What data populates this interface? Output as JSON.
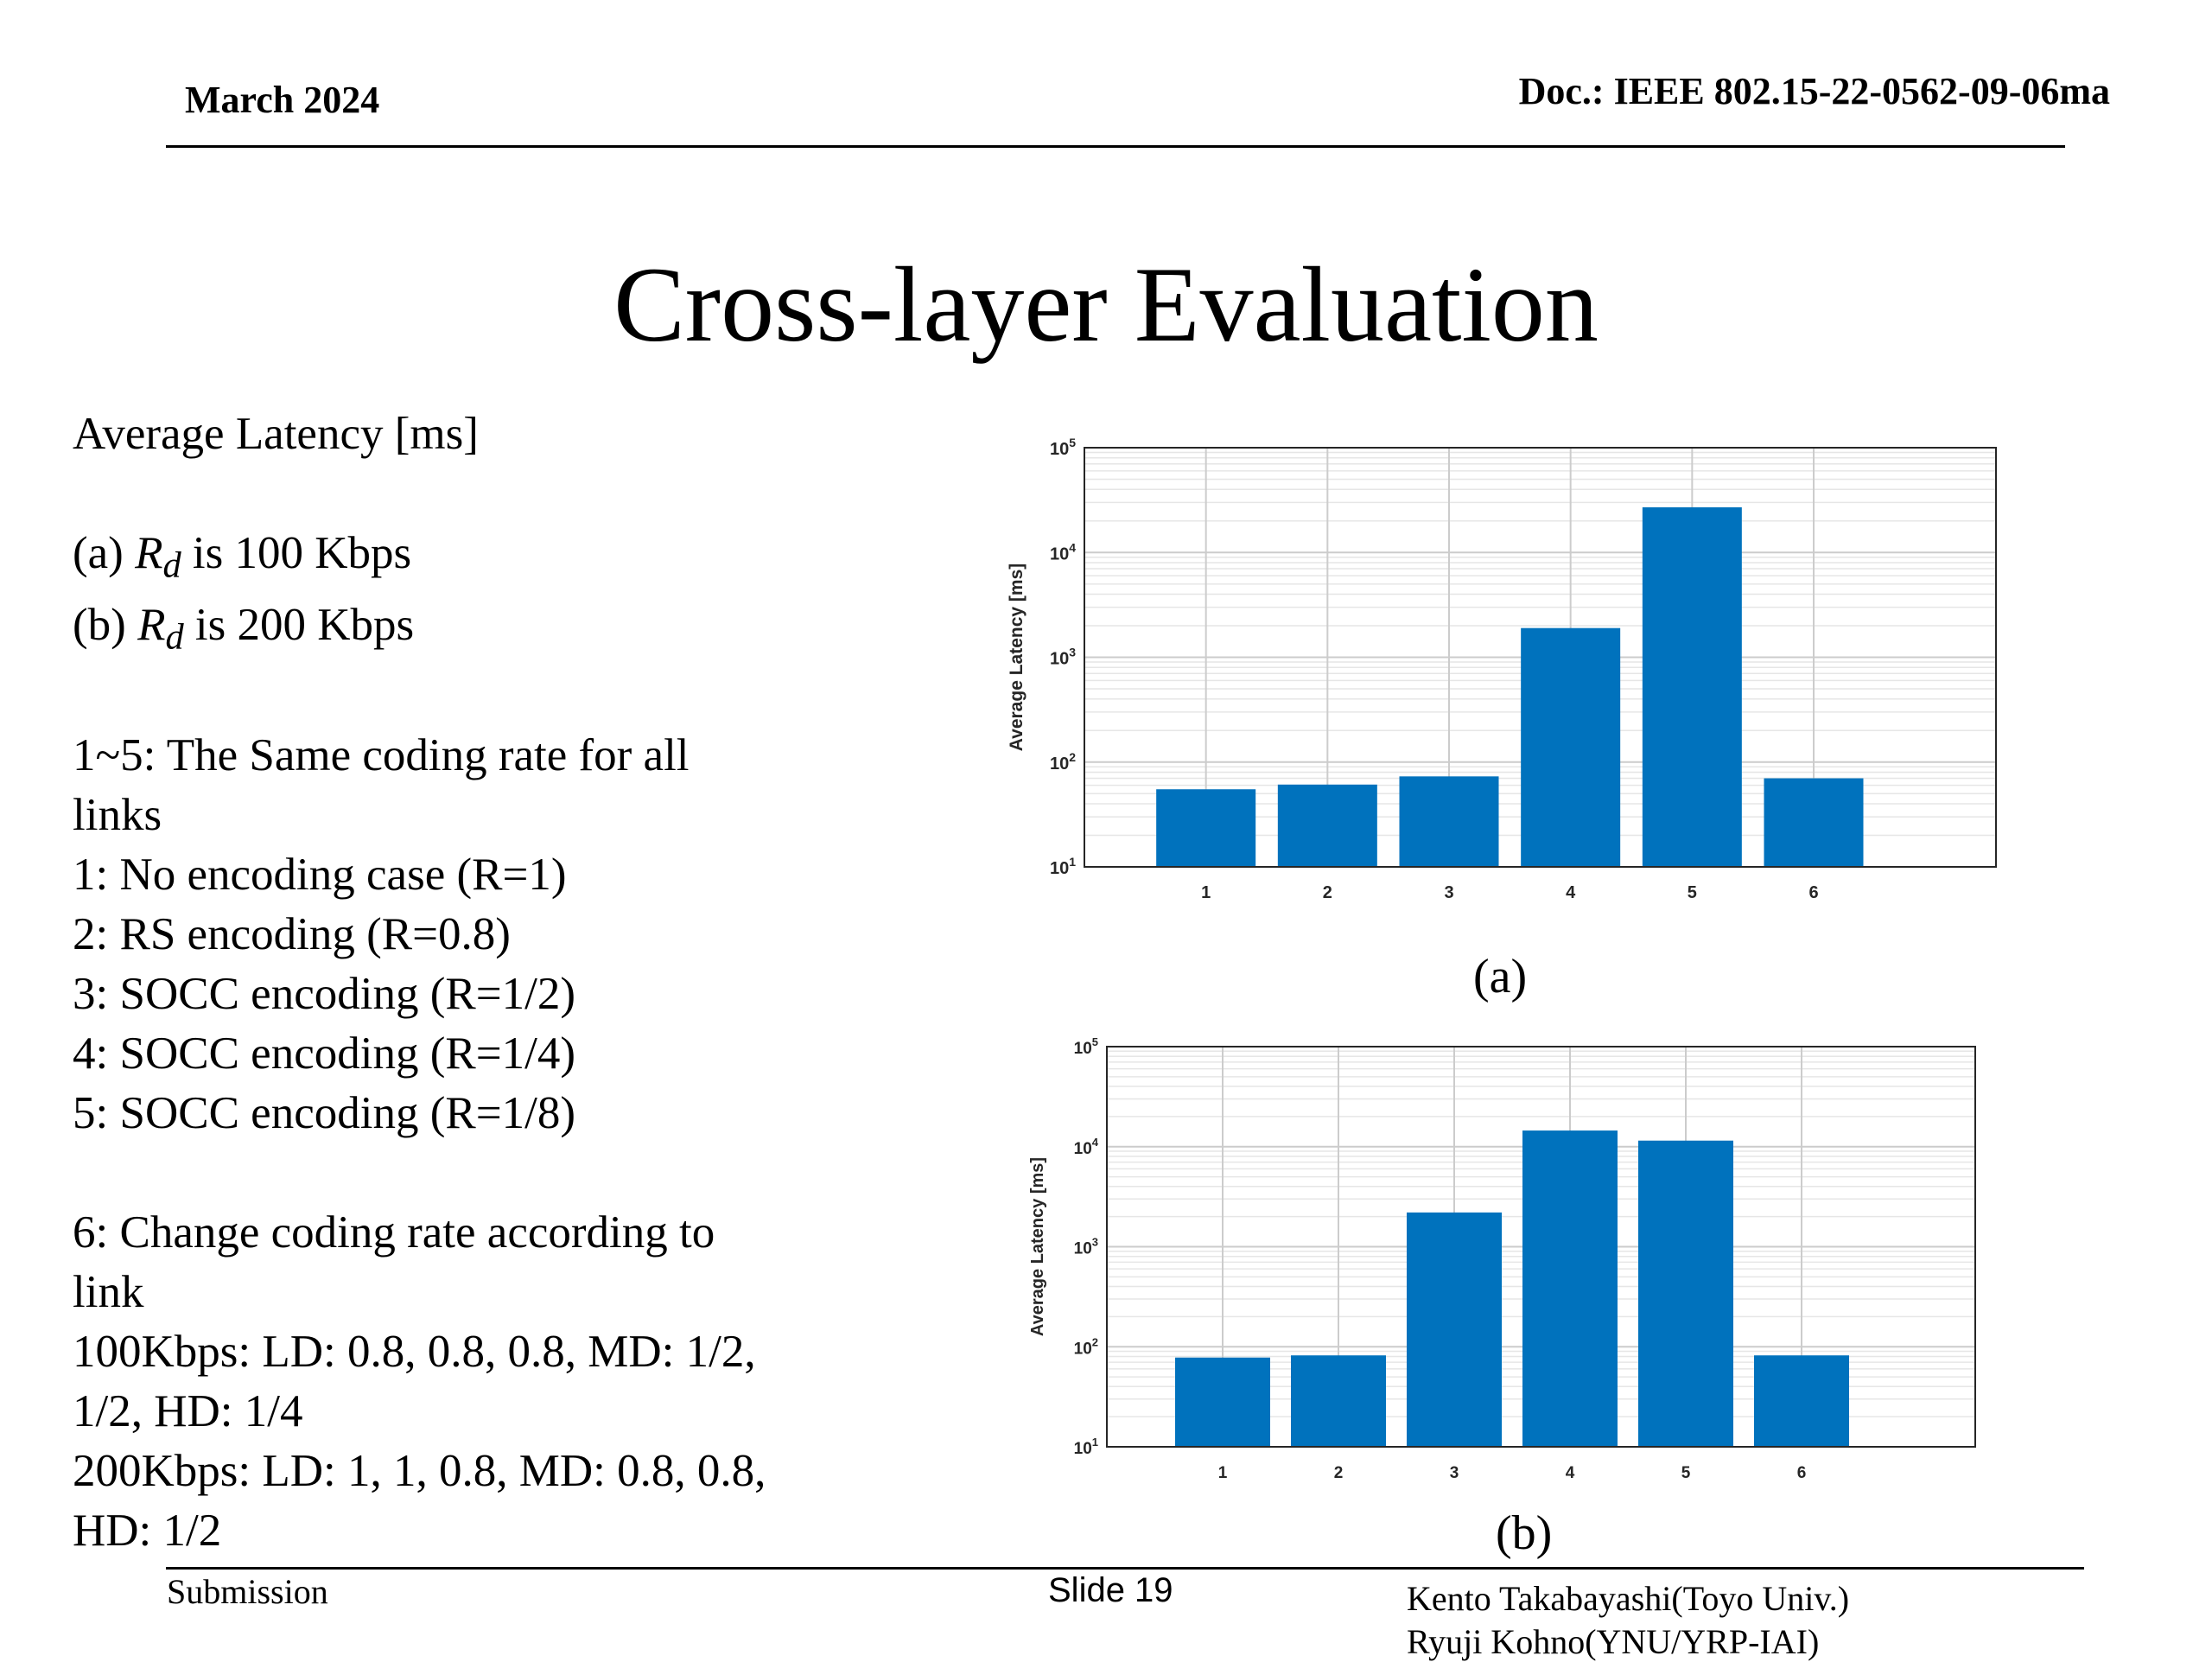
{
  "header": {
    "date": "March 2024",
    "doc": "Doc.: IEEE 802.15-22-0562-09-06ma"
  },
  "slide": {
    "title": "Cross-layer Evaluation",
    "left": {
      "heading": "Average Latency [ms]",
      "cases": [
        {
          "prefix": "(a) ",
          "sym": "R",
          "sub": "d",
          "suffix": " is 100 Kbps"
        },
        {
          "prefix": "(b) ",
          "sym": "R",
          "sub": "d",
          "suffix": " is 200 Kbps"
        }
      ],
      "same_rate": [
        "1~5: The Same coding rate for all",
        "links",
        "1: No encoding case (R=1)",
        "2: RS encoding (R=0.8)",
        "3: SOCC encoding (R=1/2)",
        "4: SOCC encoding (R=1/4)",
        "5: SOCC encoding (R=1/8)"
      ],
      "adaptive": [
        "6: Change coding rate according to",
        "link",
        "100Kbps: LD: 0.8, 0.8, 0.8, MD: 1/2,",
        "1/2, HD: 1/4",
        "200Kbps: LD: 1, 1, 0.8, MD: 0.8, 0.8,",
        "HD: 1/2"
      ]
    }
  },
  "chart_data": [
    {
      "type": "bar",
      "caption": "(a)",
      "categories": [
        "1",
        "2",
        "3",
        "4",
        "5",
        "6"
      ],
      "values": [
        55,
        61,
        73,
        1900,
        27000,
        70
      ],
      "ylabel": "Average Latency [ms]",
      "xlabel": "",
      "yscale": "log",
      "ylim": [
        10,
        100000
      ],
      "yticks": [
        "10^1",
        "10^2",
        "10^3",
        "10^4",
        "10^5"
      ],
      "grid": true,
      "color": "#0072BD"
    },
    {
      "type": "bar",
      "caption": "(b)",
      "categories": [
        "1",
        "2",
        "3",
        "4",
        "5",
        "6"
      ],
      "values": [
        78,
        82,
        2200,
        14500,
        11500,
        82
      ],
      "ylabel": "Average Latency [ms]",
      "xlabel": "",
      "yscale": "log",
      "ylim": [
        10,
        100000
      ],
      "yticks": [
        "10^1",
        "10^2",
        "10^3",
        "10^4",
        "10^5"
      ],
      "grid": true,
      "color": "#0072BD"
    }
  ],
  "footer": {
    "left": "Submission",
    "center": "Slide 19",
    "authors": [
      "Kento Takabayashi(Toyo Univ.)",
      "Ryuji Kohno(YNU/YRP-IAI)"
    ]
  }
}
